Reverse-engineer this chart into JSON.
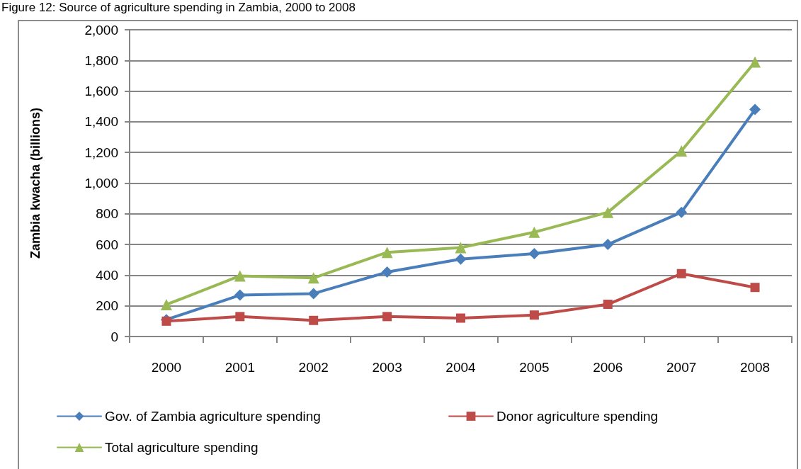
{
  "chart_data": {
    "type": "line",
    "title": "Figure 12: Source of agriculture spending in Zambia, 2000 to 2008",
    "ylabel": "Zambia kwacha (billions)",
    "categories": [
      "2000",
      "2001",
      "2002",
      "2003",
      "2004",
      "2005",
      "2006",
      "2007",
      "2008"
    ],
    "series": [
      {
        "name": "Gov. of Zambia agriculture spending",
        "color": "#4a7ebb",
        "marker": "diamond",
        "values": [
          110,
          270,
          280,
          420,
          505,
          540,
          600,
          810,
          1480
        ]
      },
      {
        "name": "Donor agriculture spending",
        "color": "#be4b48",
        "marker": "square",
        "values": [
          100,
          130,
          105,
          130,
          120,
          140,
          210,
          410,
          320
        ]
      },
      {
        "name": "Total agriculture spending",
        "color": "#98b954",
        "marker": "triangle",
        "values": [
          208,
          395,
          382,
          549,
          580,
          680,
          810,
          1210,
          1790
        ]
      }
    ],
    "ylim": [
      0,
      2000
    ],
    "yticks": [
      0,
      200,
      400,
      600,
      800,
      {
        "value": 1000,
        "label": "1,000"
      },
      {
        "value": 1200,
        "label": "1,200"
      },
      {
        "value": 1400,
        "label": "1,400"
      },
      {
        "value": 1600,
        "label": "1,600"
      },
      {
        "value": 1800,
        "label": "1,800"
      },
      {
        "value": 2000,
        "label": "2,000"
      }
    ],
    "grid": "y",
    "legend": "bottom",
    "line_style": "solid"
  }
}
